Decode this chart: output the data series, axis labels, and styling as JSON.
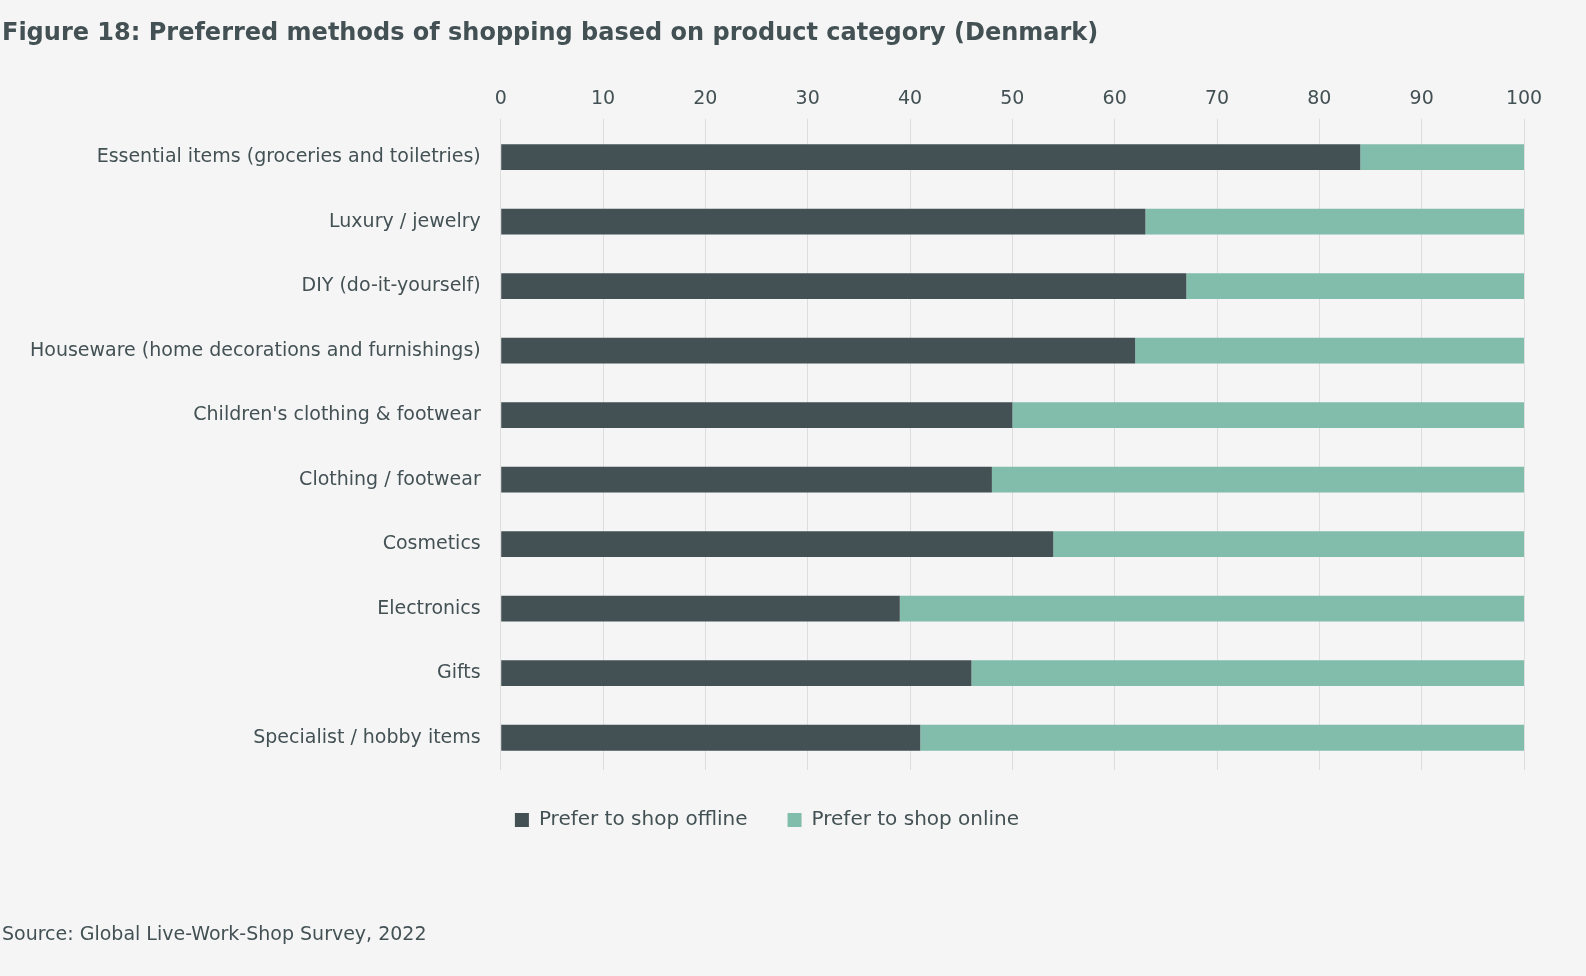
{
  "chart_data": {
    "type": "bar",
    "orientation": "horizontal",
    "stacked": true,
    "title": "Figure 18: Preferred methods of shopping based on product category (Denmark)",
    "categories": [
      "Essential items (groceries and toiletries)",
      "Luxury / jewelry",
      "DIY (do-it-yourself)",
      "Houseware (home decorations and furnishings)",
      "Children's clothing & footwear",
      "Clothing / footwear",
      "Cosmetics",
      "Electronics",
      "Gifts",
      "Specialist / hobby items"
    ],
    "series": [
      {
        "name": "Prefer to shop offline",
        "color": "#435154",
        "values": [
          84,
          63,
          67,
          62,
          50,
          48,
          54,
          39,
          46,
          41
        ]
      },
      {
        "name": "Prefer to shop online",
        "color": "#82bcab",
        "values": [
          16,
          37,
          33,
          38,
          50,
          52,
          46,
          61,
          54,
          59
        ]
      }
    ],
    "xlim": [
      0,
      100
    ],
    "xticks": [
      0,
      10,
      20,
      30,
      40,
      50,
      60,
      70,
      80,
      90,
      100
    ],
    "grid": "x",
    "legend": "bottom",
    "annotations": [
      "Source: Global Live-Work-Shop Survey, 2022"
    ]
  }
}
